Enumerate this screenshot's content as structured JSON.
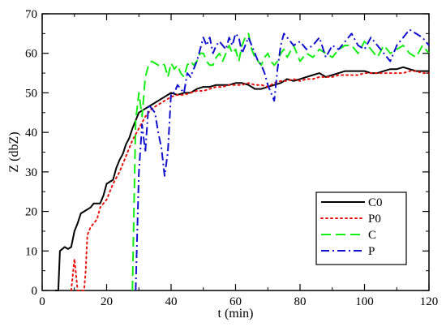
{
  "chart_data": {
    "type": "line",
    "xlabel": "t (min)",
    "ylabel": "Z (dbZ)",
    "xlim": [
      0,
      120
    ],
    "ylim": [
      0,
      70
    ],
    "xticks": [
      0,
      20,
      40,
      60,
      80,
      100,
      120
    ],
    "yticks": [
      0,
      10,
      20,
      30,
      40,
      50,
      60,
      70
    ],
    "grid": false,
    "legend_position": "lower-right",
    "series": [
      {
        "name": "C0",
        "color": "#000000",
        "style": "solid",
        "x": [
          4,
          5,
          5.5,
          7,
          8,
          9,
          10,
          11,
          12,
          13,
          14,
          15,
          16,
          17,
          18,
          19,
          20,
          21,
          22,
          23,
          24,
          25,
          26,
          27,
          28,
          29,
          30,
          31,
          32,
          33,
          34,
          35,
          36,
          37,
          38,
          39,
          40,
          42,
          44,
          46,
          48,
          50,
          52,
          54,
          56,
          58,
          60,
          62,
          64,
          66,
          68,
          70,
          72,
          74,
          76,
          78,
          80,
          82,
          84,
          86,
          88,
          90,
          92,
          94,
          96,
          98,
          100,
          102,
          104,
          106,
          108,
          110,
          112,
          114,
          116,
          118,
          120
        ],
        "y": [
          0,
          0,
          10,
          11,
          10.5,
          11,
          15,
          17,
          19.5,
          20,
          20.5,
          21,
          22,
          22,
          22,
          24,
          27,
          27.5,
          28,
          31,
          33,
          34.5,
          37,
          38.5,
          41,
          43,
          45,
          45.5,
          46,
          46.5,
          47,
          47.5,
          48,
          48.5,
          49,
          49.5,
          50,
          49.5,
          50,
          50,
          51,
          51.5,
          51.5,
          52,
          52,
          52,
          52.5,
          52.5,
          52,
          51,
          51,
          51.5,
          52,
          52.5,
          53.5,
          53,
          53.5,
          54,
          54.5,
          55,
          54,
          54.5,
          55,
          55.5,
          55.5,
          55.5,
          55.5,
          55,
          55,
          55.5,
          56,
          56,
          56.5,
          56,
          55.5,
          55.5,
          55.5
        ]
      },
      {
        "name": "P0",
        "color": "#e8120d",
        "style": "dotted",
        "x": [
          9,
          10,
          11,
          11.5,
          12,
          12.5,
          13,
          13.5,
          14,
          15,
          16,
          17,
          18,
          19,
          20,
          22,
          24,
          26,
          28,
          30,
          32,
          34,
          36,
          38,
          40,
          42,
          44,
          46,
          48,
          50,
          52,
          54,
          56,
          58,
          60,
          62,
          64,
          66,
          68,
          70,
          72,
          74,
          76,
          78,
          80,
          82,
          84,
          86,
          88,
          90,
          92,
          94,
          96,
          98,
          100,
          102,
          104,
          106,
          108,
          110,
          112,
          114,
          116,
          118,
          120
        ],
        "y": [
          0,
          8,
          0,
          0,
          0,
          0,
          0,
          5,
          14,
          16,
          17,
          18,
          21,
          22,
          23,
          27,
          30,
          34,
          38,
          41,
          44,
          46,
          47,
          48,
          49,
          49.5,
          49.5,
          50,
          50.5,
          50.5,
          51,
          51.5,
          51.5,
          52,
          52,
          52,
          52.5,
          52,
          52,
          51.5,
          52.5,
          53,
          53,
          53.5,
          53,
          53.5,
          53.5,
          54,
          54,
          54,
          54.5,
          54.5,
          54.5,
          54.5,
          55,
          55,
          55,
          55,
          55,
          55,
          55,
          55.5,
          55.5,
          55,
          55
        ]
      },
      {
        "name": "C",
        "color": "#11ee11",
        "style": "dashed",
        "x": [
          28,
          29,
          30,
          31,
          32,
          33,
          34,
          35,
          36,
          37,
          38,
          39,
          40,
          41,
          42,
          43,
          44,
          45,
          46,
          47,
          48,
          49,
          50,
          51,
          52,
          53,
          54,
          55,
          56,
          57,
          58,
          59,
          60,
          61,
          62,
          63,
          64,
          65,
          66,
          67,
          68,
          69,
          70,
          71,
          72,
          73,
          74,
          75,
          76,
          78,
          80,
          82,
          84,
          86,
          88,
          90,
          92,
          94,
          96,
          98,
          100,
          102,
          104,
          106,
          108,
          110,
          112,
          114,
          116,
          118,
          120
        ],
        "y": [
          0,
          43,
          50,
          44,
          54,
          57,
          58,
          57.5,
          57,
          57.5,
          57,
          54,
          57.5,
          56,
          57,
          55,
          54,
          57,
          58,
          57,
          58,
          60,
          60,
          58,
          57,
          57,
          59,
          60,
          58,
          60,
          62,
          60,
          61,
          58,
          62,
          64,
          65,
          61,
          59,
          58,
          57,
          59,
          60,
          58,
          57,
          58,
          60,
          61,
          59,
          62,
          58,
          60,
          59,
          61,
          60,
          59,
          61,
          62,
          62,
          60,
          63,
          61,
          59,
          62,
          60,
          61,
          62,
          60,
          59,
          62,
          60
        ]
      },
      {
        "name": "P",
        "color": "#1010cc",
        "style": "dashdot",
        "x": [
          29,
          30,
          31,
          32,
          33,
          34,
          35,
          36,
          37,
          38,
          39,
          40,
          41,
          42,
          43,
          44,
          45,
          46,
          47,
          48,
          49,
          50,
          51,
          52,
          53,
          54,
          55,
          56,
          57,
          58,
          59,
          60,
          61,
          62,
          63,
          64,
          65,
          66,
          67,
          68,
          69,
          70,
          71,
          72,
          73,
          74,
          75,
          76,
          78,
          80,
          82,
          84,
          86,
          88,
          90,
          92,
          94,
          96,
          98,
          100,
          102,
          104,
          106,
          108,
          110,
          112,
          114,
          116,
          118,
          120
        ],
        "y": [
          0,
          30,
          42,
          35,
          47,
          46,
          45,
          40,
          36,
          29,
          35,
          50,
          50,
          52,
          51,
          50,
          55,
          54,
          56,
          58,
          61,
          64,
          62,
          64,
          60,
          62,
          63,
          62,
          61,
          64,
          62,
          65,
          64,
          60,
          62,
          64,
          62,
          60,
          58,
          57,
          55,
          52,
          50,
          48,
          56,
          62,
          65,
          64,
          62,
          63,
          61,
          62,
          64,
          59,
          62,
          61,
          63,
          65,
          62,
          61,
          64,
          62,
          60,
          58,
          62,
          64,
          66,
          65,
          64,
          62
        ]
      }
    ]
  }
}
